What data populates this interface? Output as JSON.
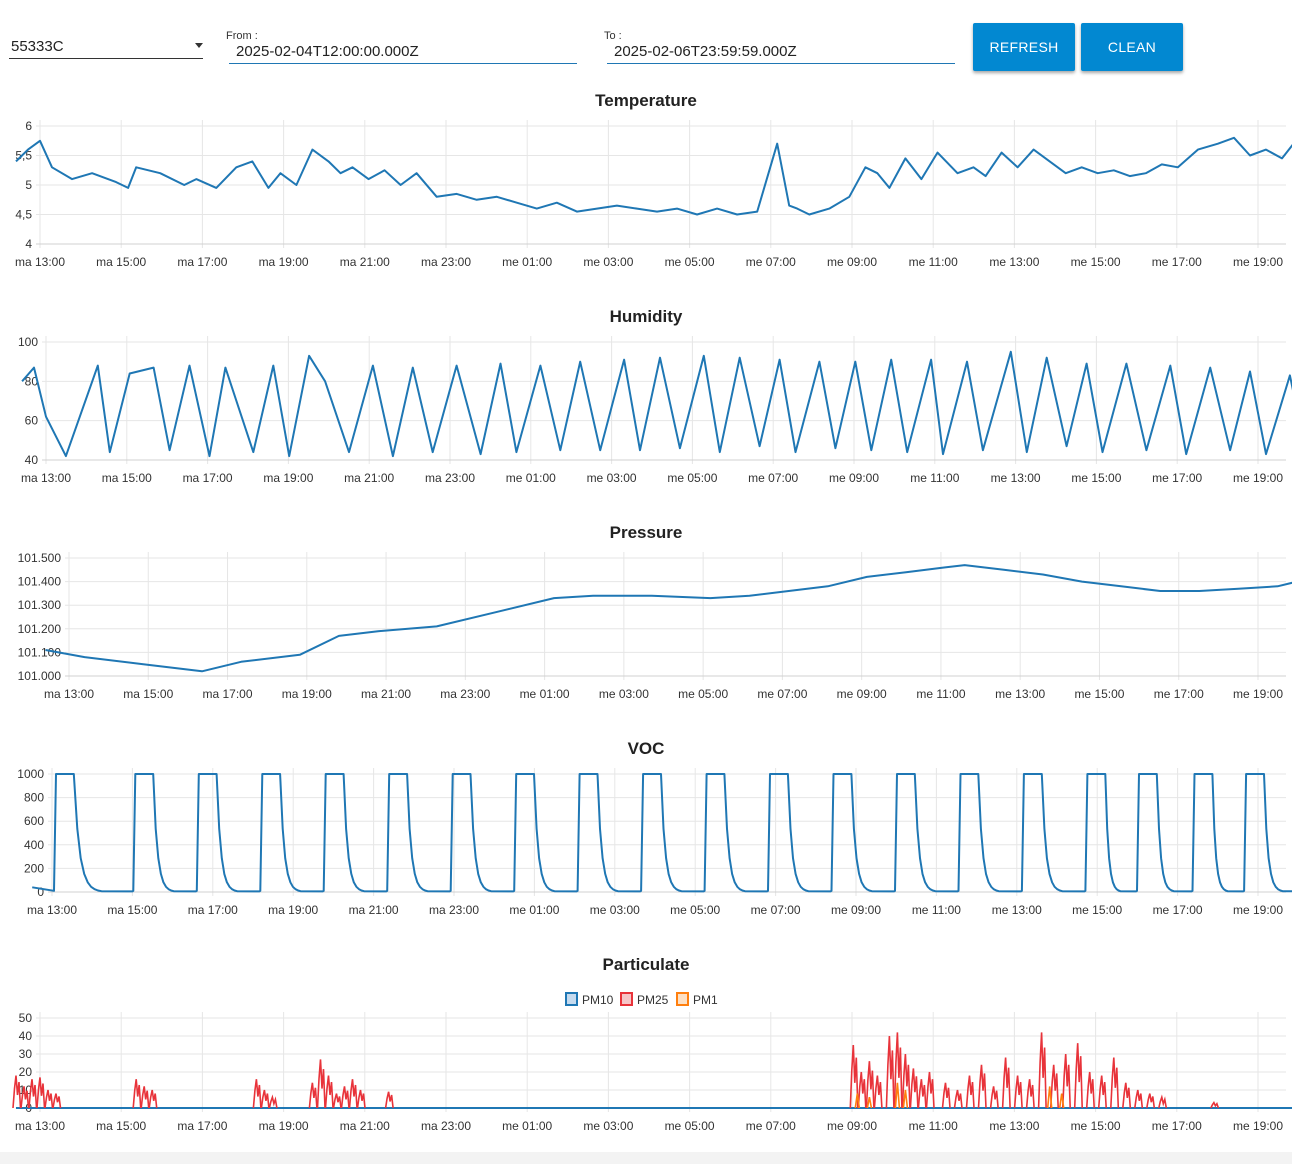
{
  "toolbar": {
    "device_select": {
      "value": "55333C"
    },
    "from": {
      "label": "From :",
      "value": "2025-02-04T12:00:00.000Z"
    },
    "to": {
      "label": "To :",
      "value": "2025-02-06T23:59:59.000Z"
    },
    "refresh_label": "REFRESH",
    "clean_label": "CLEAN"
  },
  "colors": {
    "pm10": "#1f77b4",
    "pm25": "#e8333a",
    "pm1": "#ff7f0e",
    "series": "#1f77b4",
    "button": "#0288d1"
  },
  "x_ticks": [
    "ma 13:00",
    "ma 15:00",
    "ma 17:00",
    "ma 19:00",
    "ma 21:00",
    "ma 23:00",
    "me 01:00",
    "me 03:00",
    "me 05:00",
    "me 07:00",
    "me 09:00",
    "me 11:00",
    "me 13:00",
    "me 15:00",
    "me 17:00",
    "me 19:00"
  ],
  "chart_data": [
    {
      "type": "line",
      "title": "Temperature",
      "ylim": [
        4,
        6
      ],
      "y_ticks": [
        "4",
        "4,5",
        "5",
        "5,5",
        "6"
      ],
      "y_tick_values": [
        4,
        4.5,
        5,
        5.5,
        6
      ],
      "x_hours": [
        12.0,
        12.3,
        12.6,
        12.9,
        13.4,
        13.9,
        14.5,
        14.8,
        15.0,
        15.6,
        16.2,
        16.5,
        17.0,
        17.5,
        17.9,
        18.3,
        18.6,
        19.0,
        19.4,
        19.8,
        20.1,
        20.4,
        20.8,
        21.2,
        21.6,
        22.0,
        22.5,
        23.0,
        23.5,
        24.0,
        24.5,
        25.0,
        25.5,
        26.0,
        26.5,
        27.0,
        27.5,
        28.0,
        28.5,
        29.0,
        29.5,
        30.0,
        30.5,
        31.0,
        31.3,
        31.5,
        31.8,
        32.3,
        32.8,
        33.2,
        33.5,
        33.8,
        34.2,
        34.6,
        35.0,
        35.5,
        35.9,
        36.2,
        36.6,
        37.0,
        37.4,
        37.8,
        38.2,
        38.6,
        39.0,
        39.4,
        39.8,
        40.2,
        40.6,
        41.0,
        41.5,
        42.0,
        42.4,
        42.8,
        43.2,
        43.6,
        44.0,
        44.3,
        44.6,
        45.0,
        45.4,
        45.8,
        46.2,
        46.5
      ],
      "values": [
        5.4,
        5.6,
        5.75,
        5.3,
        5.1,
        5.2,
        5.05,
        4.95,
        5.3,
        5.2,
        5.0,
        5.1,
        4.95,
        5.3,
        5.4,
        4.95,
        5.2,
        5.0,
        5.6,
        5.4,
        5.2,
        5.3,
        5.1,
        5.25,
        5.0,
        5.2,
        4.8,
        4.85,
        4.75,
        4.8,
        4.7,
        4.6,
        4.7,
        4.55,
        4.6,
        4.65,
        4.6,
        4.55,
        4.6,
        4.5,
        4.6,
        4.5,
        4.55,
        5.7,
        4.65,
        4.6,
        4.5,
        4.6,
        4.8,
        5.3,
        5.2,
        4.95,
        5.45,
        5.1,
        5.55,
        5.2,
        5.3,
        5.15,
        5.55,
        5.3,
        5.6,
        5.4,
        5.2,
        5.3,
        5.2,
        5.25,
        5.15,
        5.2,
        5.35,
        5.3,
        5.6,
        5.7,
        5.8,
        5.5,
        5.6,
        5.45,
        5.8,
        5.5,
        5.45,
        5.4,
        5.55,
        5.6,
        5.45,
        5.35
      ]
    },
    {
      "type": "line",
      "title": "Humidity",
      "ylim": [
        40,
        100
      ],
      "y_ticks": [
        "40",
        "60",
        "80",
        "100"
      ],
      "y_tick_values": [
        40,
        60,
        80,
        100
      ],
      "x_hours": [
        12.0,
        12.3,
        12.6,
        13.1,
        13.9,
        14.2,
        14.7,
        15.3,
        15.7,
        16.2,
        16.7,
        17.1,
        17.8,
        18.3,
        18.7,
        19.2,
        19.6,
        20.2,
        20.8,
        21.3,
        21.8,
        22.3,
        22.9,
        23.5,
        24.0,
        24.4,
        25.0,
        25.5,
        26.0,
        26.5,
        27.1,
        27.5,
        28.0,
        28.5,
        29.1,
        29.5,
        30.0,
        30.5,
        31.0,
        31.4,
        32.0,
        32.4,
        32.9,
        33.3,
        33.8,
        34.2,
        34.8,
        35.1,
        35.7,
        36.1,
        36.8,
        37.2,
        37.7,
        38.2,
        38.7,
        39.1,
        39.7,
        40.2,
        40.8,
        41.2,
        41.8,
        42.3,
        42.8,
        43.2,
        43.8,
        44.2,
        44.7,
        45.2,
        45.6,
        46.3,
        46.6
      ],
      "values": [
        80,
        87,
        62,
        42,
        88,
        44,
        84,
        87,
        45,
        88,
        42,
        87,
        44,
        88,
        42,
        93,
        80,
        44,
        88,
        42,
        87,
        44,
        88,
        43,
        89,
        44,
        88,
        45,
        90,
        45,
        91,
        45,
        92,
        46,
        93,
        44,
        92,
        47,
        91,
        44,
        90,
        46,
        90,
        45,
        91,
        44,
        91,
        43,
        90,
        45,
        95,
        44,
        92,
        47,
        89,
        44,
        89,
        45,
        88,
        43,
        87,
        45,
        85,
        43,
        83,
        44,
        85,
        43,
        84,
        44,
        64
      ]
    },
    {
      "type": "line",
      "title": "Pressure",
      "ylim": [
        101.0,
        101.5
      ],
      "y_ticks": [
        "101.000",
        "101.100",
        "101.200",
        "101.300",
        "101.400",
        "101.500"
      ],
      "y_tick_values": [
        101.0,
        101.1,
        101.2,
        101.3,
        101.4,
        101.5
      ],
      "x_hours": [
        12.0,
        13.0,
        14.5,
        16.0,
        17.0,
        18.5,
        19.5,
        20.5,
        22.0,
        23.5,
        25.0,
        26.0,
        27.5,
        29.0,
        30.0,
        31.0,
        32.0,
        33.0,
        34.0,
        35.0,
        35.5,
        36.5,
        37.5,
        38.5,
        39.5,
        40.5,
        41.5,
        42.5,
        43.5,
        44.0,
        45.0,
        46.0,
        46.5
      ],
      "values": [
        101.11,
        101.08,
        101.05,
        101.02,
        101.06,
        101.09,
        101.17,
        101.19,
        101.21,
        101.27,
        101.33,
        101.34,
        101.34,
        101.33,
        101.34,
        101.36,
        101.38,
        101.42,
        101.44,
        101.46,
        101.47,
        101.45,
        101.43,
        101.4,
        101.38,
        101.36,
        101.36,
        101.37,
        101.38,
        101.4,
        101.42,
        101.45,
        101.46
      ]
    },
    {
      "type": "line",
      "title": "VOC",
      "ylim": [
        0,
        1000
      ],
      "y_ticks": [
        "0",
        "200",
        "400",
        "600",
        "800",
        "1000"
      ],
      "y_tick_values": [
        0,
        200,
        400,
        600,
        800,
        1000
      ],
      "pulse_peaks_x_hours": [
        12.7,
        14.7,
        16.3,
        17.9,
        19.5,
        21.1,
        22.7,
        24.3,
        25.9,
        27.5,
        29.1,
        30.7,
        32.3,
        33.9,
        35.5,
        37.1,
        38.7,
        40.0,
        41.4,
        42.7,
        44.2,
        45.9
      ],
      "pulse_width_hours": 0.45,
      "values_high": 1000,
      "values_low": 0
    },
    {
      "type": "bar",
      "title": "Particulate",
      "ylim": [
        0,
        50
      ],
      "y_ticks": [
        "0",
        "10",
        "20",
        "30",
        "40",
        "50"
      ],
      "y_tick_values": [
        0,
        10,
        20,
        30,
        40,
        50
      ],
      "legend": [
        "PM10",
        "PM25",
        "PM1"
      ],
      "legend_position": "top-center",
      "series": [
        {
          "name": "PM10",
          "x_hours": [
            12.0,
            46.5
          ],
          "values": [
            0,
            0
          ]
        },
        {
          "name": "PM25",
          "x_hours": [
            12.0,
            12.2,
            12.4,
            12.6,
            12.8,
            13.0,
            15.0,
            15.2,
            15.4,
            18.0,
            18.2,
            18.4,
            19.4,
            19.6,
            19.8,
            20.0,
            20.2,
            20.4,
            20.6,
            21.3,
            32.9,
            33.1,
            33.3,
            33.5,
            33.8,
            34.0,
            34.2,
            34.4,
            34.6,
            34.8,
            35.2,
            35.5,
            35.8,
            36.1,
            36.4,
            36.7,
            37.0,
            37.3,
            37.6,
            37.9,
            38.2,
            38.5,
            38.8,
            39.1,
            39.4,
            39.7,
            40.0,
            40.3,
            40.6,
            41.9,
            44.5,
            44.7,
            44.9,
            45.1,
            45.3,
            45.6,
            45.9,
            46.1,
            46.3
          ],
          "values": [
            18,
            12,
            16,
            17,
            10,
            8,
            16,
            12,
            10,
            16,
            10,
            6,
            14,
            27,
            18,
            8,
            12,
            16,
            10,
            9,
            35,
            20,
            26,
            18,
            40,
            42,
            30,
            22,
            16,
            20,
            14,
            10,
            18,
            24,
            12,
            28,
            18,
            16,
            42,
            24,
            30,
            36,
            20,
            18,
            28,
            14,
            10,
            8,
            6,
            3,
            22,
            18,
            20,
            12,
            8,
            10,
            36,
            40,
            12
          ]
        },
        {
          "name": "PM1",
          "x_hours": [
            33.0,
            33.3,
            34.0,
            34.2,
            37.8,
            38.1,
            45.9,
            46.1
          ],
          "values": [
            8,
            6,
            14,
            10,
            12,
            8,
            14,
            10
          ]
        }
      ]
    }
  ]
}
